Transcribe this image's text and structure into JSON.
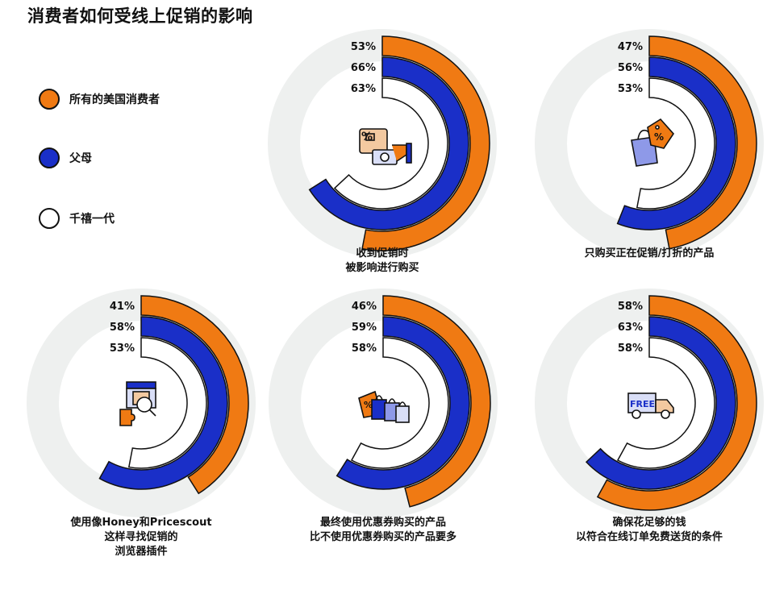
{
  "title": "消费者如何受线上促销的影响",
  "colors": {
    "all": "#F07A13",
    "parents": "#1A2FC8",
    "genz": "#FFFFFF",
    "outline": "#111111",
    "track": "#EEF0EF"
  },
  "legend": [
    {
      "label": "所有的美国消费者",
      "color": "#F07A13"
    },
    {
      "label": "父母",
      "color": "#1A2FC8"
    },
    {
      "label": "千禧一代",
      "color": "#FFFFFF"
    }
  ],
  "chart_data": [
    {
      "type": "radial-bar",
      "icon": "promo-card-money-icon",
      "caption": [
        "收到促销时",
        "被影响进行购买"
      ],
      "series": [
        {
          "name": "所有的美国消费者",
          "value": 53,
          "label": "53%"
        },
        {
          "name": "父母",
          "value": 66,
          "label": "66%"
        },
        {
          "name": "千禧一代",
          "value": 63,
          "label": "63%"
        }
      ]
    },
    {
      "type": "radial-bar",
      "icon": "shopping-bag-tag-icon",
      "caption": [
        "只购买正在促销/打折的产品"
      ],
      "series": [
        {
          "name": "所有的美国消费者",
          "value": 47,
          "label": "47%"
        },
        {
          "name": "父母",
          "value": 56,
          "label": "56%"
        },
        {
          "name": "千禧一代",
          "value": 53,
          "label": "53%"
        }
      ]
    },
    {
      "type": "radial-bar",
      "icon": "store-plugin-icon",
      "caption": [
        "使用像Honey和Pricescout",
        "这样寻找促销的",
        "浏览器插件"
      ],
      "series": [
        {
          "name": "所有的美国消费者",
          "value": 41,
          "label": "41%"
        },
        {
          "name": "父母",
          "value": 58,
          "label": "58%"
        },
        {
          "name": "千禧一代",
          "value": 53,
          "label": "53%"
        }
      ]
    },
    {
      "type": "radial-bar",
      "icon": "shopping-bags-icon",
      "caption": [
        "最终使用优惠券购买的产品",
        "比不使用优惠券购买的产品要多"
      ],
      "series": [
        {
          "name": "所有的美国消费者",
          "value": 46,
          "label": "46%"
        },
        {
          "name": "父母",
          "value": 59,
          "label": "59%"
        },
        {
          "name": "千禧一代",
          "value": 58,
          "label": "58%"
        }
      ]
    },
    {
      "type": "radial-bar",
      "icon": "free-delivery-truck-icon",
      "icon_text": "FREE",
      "caption": [
        "确保花足够的钱",
        "以符合在线订单免费送货的条件"
      ],
      "series": [
        {
          "name": "所有的美国消费者",
          "value": 58,
          "label": "58%"
        },
        {
          "name": "父母",
          "value": 63,
          "label": "63%"
        },
        {
          "name": "千禧一代",
          "value": 58,
          "label": "58%"
        }
      ]
    }
  ]
}
